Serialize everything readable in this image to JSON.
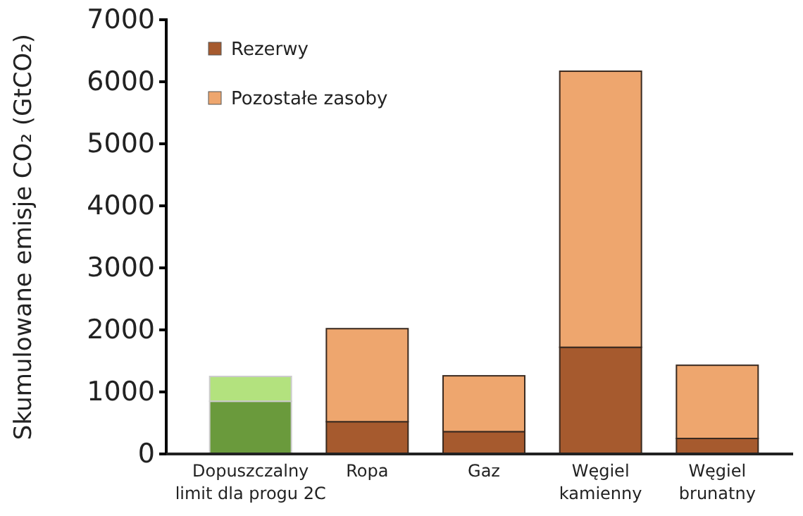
{
  "chart_data": {
    "type": "bar",
    "stacked": true,
    "ylabel": "Skumulowane emisje CO₂ (GtCO₂)",
    "categories": [
      "Dopuszczalny limit dla progu 2C",
      "Ropa",
      "Gaz",
      "Węgiel kamienny",
      "Węgiel brunatny"
    ],
    "series": [
      {
        "name": "Rezerwy",
        "color": "#a65a2e",
        "colors": [
          "#6a9a3c",
          "#a65a2e",
          "#a65a2e",
          "#a65a2e",
          "#a65a2e"
        ],
        "values": [
          850,
          520,
          360,
          1720,
          250
        ]
      },
      {
        "name": "Pozostałe zasoby",
        "color": "#eea66e",
        "colors": [
          "#b3e27e",
          "#eea66e",
          "#eea66e",
          "#eea66e",
          "#eea66e"
        ],
        "values": [
          400,
          1500,
          900,
          4450,
          1180
        ]
      }
    ],
    "ylim": [
      0,
      7000
    ],
    "yticks": [
      0,
      1000,
      2000,
      3000,
      4000,
      5000,
      6000,
      7000
    ],
    "grid": false,
    "legend": "top left"
  }
}
